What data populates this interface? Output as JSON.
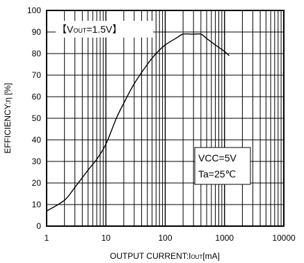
{
  "chart_data": {
    "type": "line",
    "title": "",
    "x_scale": "log",
    "y_scale": "linear",
    "xlim": [
      1,
      10000
    ],
    "ylim": [
      0,
      100
    ],
    "grid": true,
    "legend": "none",
    "xlabel": {
      "main": "OUTPUT CURRENT:I",
      "sub": "OUT",
      "unit": "[mA]"
    },
    "ylabel": "EFFICIENCY:η [%]",
    "x_tick_labels": [
      "1",
      "10",
      "100",
      "1000",
      "10000"
    ],
    "y_tick_labels": [
      "0",
      "10",
      "20",
      "30",
      "40",
      "50",
      "60",
      "70",
      "80",
      "90",
      "100"
    ],
    "annotations": {
      "vout": {
        "open": "【V",
        "sub": "OUT",
        "rest": "=1.5V】"
      },
      "vcc": "VCC=5V",
      "ta": "Ta=25℃"
    },
    "series": [
      {
        "color": "#000000",
        "x": [
          1,
          2,
          3,
          5,
          7,
          10,
          15,
          20,
          30,
          50,
          70,
          100,
          150,
          200,
          300,
          400,
          500,
          700,
          1000,
          1200
        ],
        "y": [
          7,
          12,
          18,
          26,
          31,
          38,
          50,
          57,
          66,
          75,
          80,
          84,
          87,
          89,
          89,
          89,
          87,
          84,
          81,
          79
        ]
      }
    ]
  }
}
